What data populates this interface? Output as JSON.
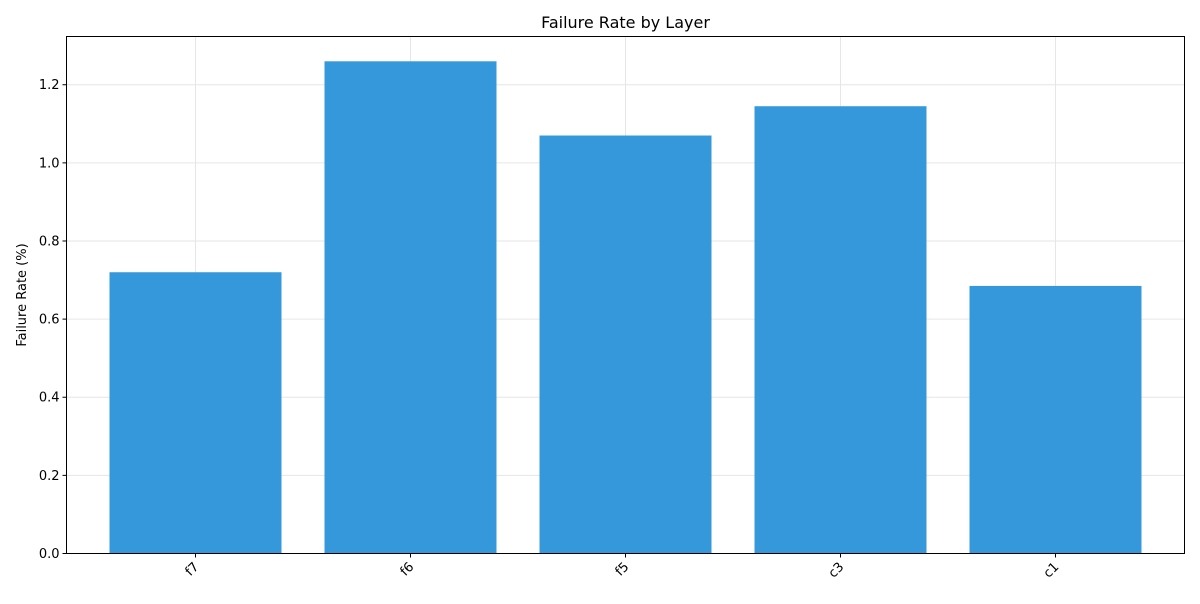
{
  "chart_data": {
    "type": "bar",
    "title": "Failure Rate by Layer",
    "xlabel": "",
    "ylabel": "Failure Rate (%)",
    "categories": [
      "f7",
      "f6",
      "f5",
      "c3",
      "c1"
    ],
    "values": [
      0.72,
      1.26,
      1.07,
      1.145,
      0.685
    ],
    "ylim": [
      0,
      1.3235
    ],
    "yticks": [
      0.0,
      0.2,
      0.4,
      0.6,
      0.8,
      1.0,
      1.2
    ],
    "ytick_labels": [
      "0.0",
      "0.2",
      "0.4",
      "0.6",
      "0.8",
      "1.0",
      "1.2"
    ],
    "grid": true,
    "legend": "none",
    "colors": {
      "bar": "#3498db",
      "grid": "#e6e6e6",
      "axis": "#000000",
      "background": "#ffffff"
    }
  }
}
